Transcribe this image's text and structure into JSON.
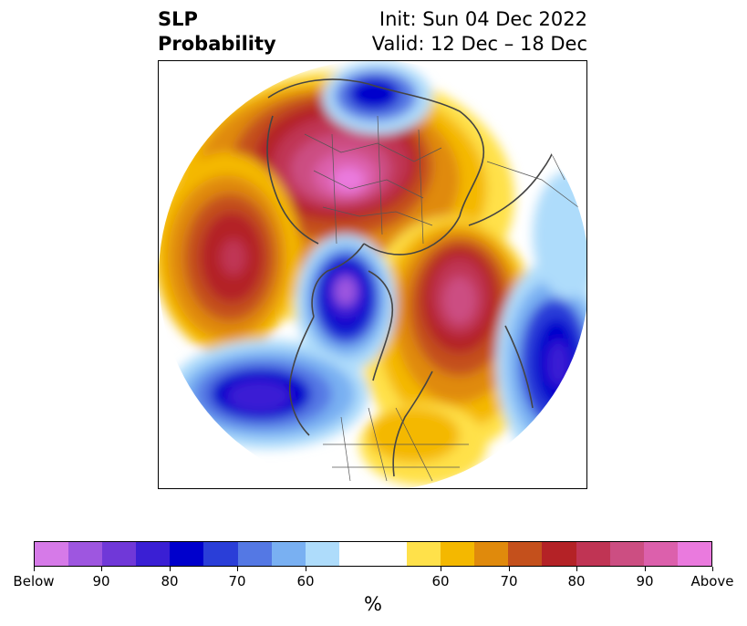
{
  "title": {
    "line1": "SLP",
    "line2": "Probability"
  },
  "info": {
    "init": "Init: Sun 04 Dec 2022",
    "valid": "Valid: 12 Dec – 18 Dec"
  },
  "colorbar": {
    "unit_label": "%",
    "below_colors": [
      "#d67ae8",
      "#9e56e0",
      "#7038d8",
      "#3a1fd4",
      "#0000cc",
      "#2a3ed8",
      "#5478e4",
      "#79b0f2",
      "#aedcfb"
    ],
    "neutral_color": "#ffffff",
    "above_colors": [
      "#ffe14a",
      "#f4b800",
      "#e08a0c",
      "#c4501c",
      "#b42226",
      "#c03454",
      "#cc4e82",
      "#dc60ac",
      "#ea7ade"
    ],
    "tick_labels": [
      "Below",
      "90",
      "80",
      "70",
      "60",
      "60",
      "70",
      "80",
      "90",
      "Above"
    ]
  },
  "colors": {
    "coastline": "#444444",
    "borders": "#555555"
  }
}
